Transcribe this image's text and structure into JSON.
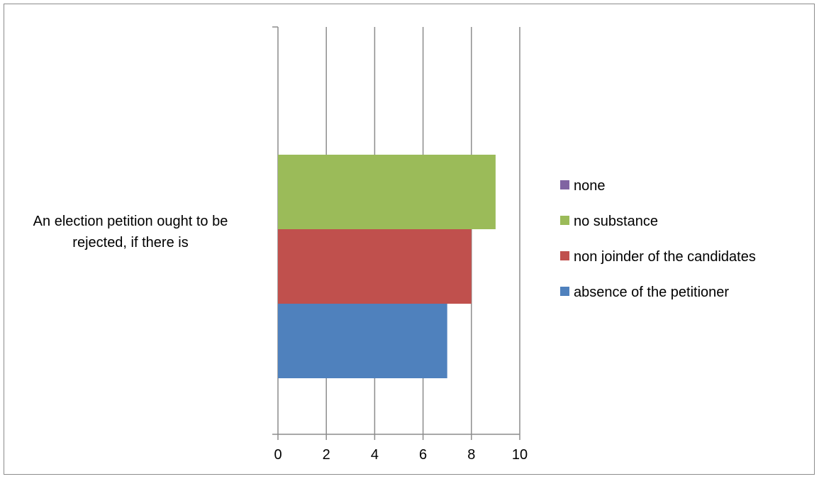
{
  "chart_data": {
    "type": "bar",
    "orientation": "horizontal",
    "categories": [
      "An election petition ought to be rejected, if there is"
    ],
    "category_label_lines": [
      "An election petition ought to be",
      "rejected, if there is"
    ],
    "series": [
      {
        "name": "absence of the petitioner",
        "values": [
          7
        ],
        "color": "#4F81BD"
      },
      {
        "name": "non joinder of the candidates",
        "values": [
          8
        ],
        "color": "#C0504D"
      },
      {
        "name": "no substance",
        "values": [
          9
        ],
        "color": "#9BBB59"
      },
      {
        "name": "none",
        "values": [
          0
        ],
        "color": "#8064A2"
      }
    ],
    "xlim": [
      0,
      10
    ],
    "x_ticks": [
      0,
      2,
      4,
      6,
      8,
      10
    ],
    "grid": true,
    "legend_position": "right",
    "title": "",
    "xlabel": "",
    "ylabel": ""
  }
}
